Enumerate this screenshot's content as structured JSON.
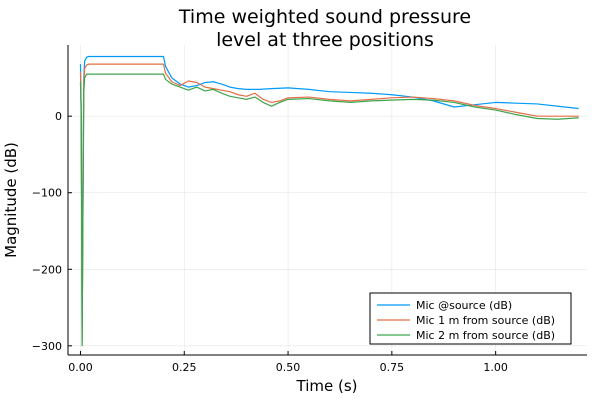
{
  "chart_data": {
    "type": "line",
    "title": [
      "Time weighted sound pressure",
      "level at three positions"
    ],
    "xlabel": "Time (s)",
    "ylabel": "Magnitude (dB)",
    "xlim": [
      -0.03,
      1.22
    ],
    "ylim": [
      -312,
      93
    ],
    "xticks": [
      0.0,
      0.25,
      0.5,
      0.75,
      1.0
    ],
    "xtick_labels": [
      "0.00",
      "0.25",
      "0.50",
      "0.75",
      "1.00"
    ],
    "yticks": [
      0,
      -100,
      -200,
      -300
    ],
    "ytick_labels": [
      "0",
      "−100",
      "−200",
      "−300"
    ],
    "grid": true,
    "legend_position": "bottom-right",
    "series": [
      {
        "name": "Mic @source (dB)",
        "color": "#009AFA",
        "x": [
          0.0,
          0.002,
          0.004,
          0.006,
          0.008,
          0.01,
          0.015,
          0.02,
          0.05,
          0.1,
          0.15,
          0.2,
          0.205,
          0.22,
          0.24,
          0.26,
          0.28,
          0.3,
          0.32,
          0.34,
          0.36,
          0.38,
          0.4,
          0.43,
          0.46,
          0.5,
          0.55,
          0.6,
          0.65,
          0.7,
          0.75,
          0.8,
          0.85,
          0.9,
          0.95,
          1.0,
          1.05,
          1.1,
          1.15,
          1.2
        ],
        "y": [
          68,
          0,
          -290,
          -100,
          50,
          72,
          77,
          78,
          78,
          78,
          78,
          78,
          65,
          50,
          42,
          38,
          40,
          44,
          45,
          42,
          38,
          36,
          35,
          35,
          36,
          37,
          35,
          32,
          31,
          30,
          28,
          25,
          20,
          12,
          15,
          18,
          17,
          16,
          13,
          10
        ]
      },
      {
        "name": "Mic 1 m from source (dB)",
        "color": "#E26F46",
        "x": [
          0.0,
          0.002,
          0.004,
          0.006,
          0.008,
          0.01,
          0.015,
          0.02,
          0.05,
          0.1,
          0.15,
          0.2,
          0.205,
          0.22,
          0.24,
          0.26,
          0.28,
          0.3,
          0.32,
          0.34,
          0.36,
          0.38,
          0.4,
          0.42,
          0.44,
          0.46,
          0.48,
          0.5,
          0.55,
          0.6,
          0.65,
          0.7,
          0.75,
          0.8,
          0.85,
          0.9,
          0.95,
          1.0,
          1.05,
          1.1,
          1.15,
          1.2
        ],
        "y": [
          58,
          0,
          -295,
          -120,
          40,
          62,
          67,
          68,
          68,
          68,
          68,
          68,
          56,
          45,
          40,
          46,
          44,
          38,
          36,
          34,
          32,
          28,
          26,
          30,
          22,
          18,
          20,
          24,
          25,
          22,
          20,
          22,
          24,
          25,
          23,
          20,
          14,
          10,
          5,
          0,
          0,
          0
        ]
      },
      {
        "name": "Mic 2 m from source (dB)",
        "color": "#3DA44D",
        "x": [
          0.0,
          0.002,
          0.004,
          0.006,
          0.008,
          0.01,
          0.015,
          0.02,
          0.05,
          0.1,
          0.15,
          0.2,
          0.205,
          0.22,
          0.24,
          0.26,
          0.28,
          0.3,
          0.32,
          0.34,
          0.36,
          0.38,
          0.4,
          0.42,
          0.44,
          0.46,
          0.48,
          0.5,
          0.55,
          0.6,
          0.65,
          0.7,
          0.75,
          0.8,
          0.85,
          0.9,
          0.95,
          1.0,
          1.05,
          1.1,
          1.15,
          1.2
        ],
        "y": [
          45,
          0,
          -300,
          -130,
          30,
          50,
          55,
          55,
          55,
          55,
          55,
          55,
          48,
          42,
          38,
          34,
          38,
          33,
          35,
          30,
          26,
          24,
          22,
          25,
          18,
          13,
          18,
          22,
          23,
          20,
          18,
          20,
          21,
          22,
          21,
          18,
          12,
          8,
          2,
          -3,
          -4,
          -2
        ]
      }
    ]
  }
}
